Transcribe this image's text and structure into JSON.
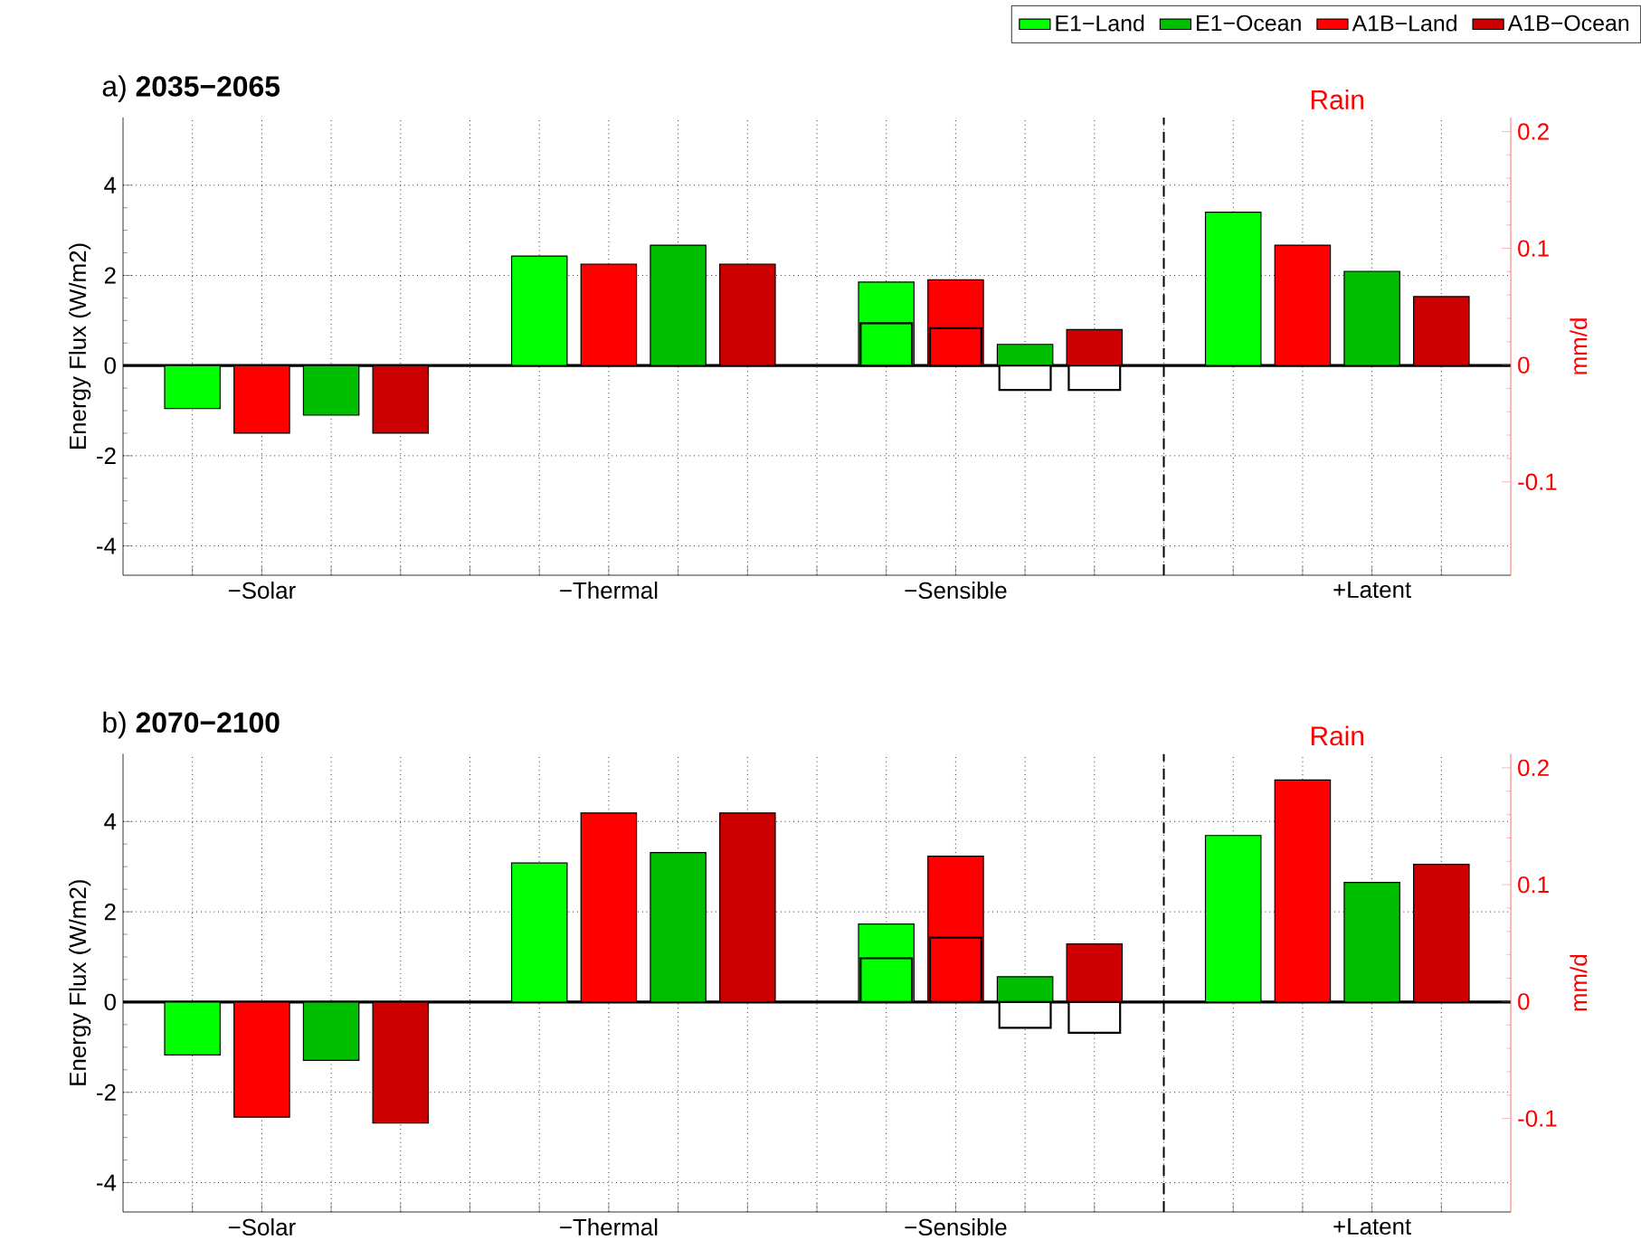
{
  "chart_data": [
    {
      "type": "bar",
      "title": "a) **2035−2065**",
      "ylabel": "Energy Flux (W/m2)",
      "y2label": "mm/d",
      "categories": [
        null,
        "−Solar",
        null,
        null,
        null,
        null,
        "−Thermal",
        null,
        null,
        null,
        null,
        "−Sensible",
        null,
        null,
        null,
        null,
        null,
        "+Latent",
        null
      ],
      "series": [
        {
          "name": "E1−Land",
          "color": "#00ff00",
          "values": [
            -0.95,
            null,
            null,
            null,
            null,
            2.43,
            null,
            null,
            null,
            null,
            1.85,
            null,
            null,
            null,
            null,
            3.4,
            null,
            null,
            null
          ]
        },
        {
          "name": "E1−Ocean",
          "color": "#00bf00",
          "values": [
            null,
            null,
            -1.1,
            null,
            null,
            null,
            null,
            2.67,
            null,
            null,
            null,
            null,
            0.47,
            null,
            null,
            null,
            null,
            2.09,
            null
          ]
        },
        {
          "name": "A1B−Land",
          "color": "#ff0000",
          "values": [
            null,
            -1.5,
            null,
            null,
            null,
            null,
            2.25,
            null,
            null,
            null,
            null,
            1.9,
            null,
            null,
            null,
            null,
            2.67,
            null,
            null
          ]
        },
        {
          "name": "A1B−Ocean",
          "color": "#cc0000",
          "values": [
            null,
            null,
            null,
            -1.5,
            null,
            null,
            null,
            null,
            2.25,
            null,
            null,
            null,
            null,
            0.8,
            null,
            null,
            null,
            null,
            1.53
          ]
        },
        {
          "colors": [
            null,
            null,
            null,
            null,
            null,
            null,
            null,
            null,
            null,
            null,
            "#00ff00",
            "#ff0000",
            "#ffffff",
            "#ffffff",
            null,
            null,
            null,
            null,
            null
          ],
          "values": [
            null,
            null,
            null,
            null,
            null,
            null,
            null,
            null,
            null,
            null,
            0.94,
            0.83,
            -0.54,
            -0.54,
            null,
            null,
            null,
            null,
            null
          ]
        }
      ],
      "ylim": [
        -4.65,
        5.5
      ],
      "yticks": [
        -4,
        -2,
        0,
        2,
        4
      ],
      "y2lim": [
        -0.18,
        0.212
      ],
      "y2ticks": [
        -0.1,
        0,
        0.1,
        0.2
      ],
      "grid": true,
      "legend": "top",
      "ref_lines": [
        {
          "axis": "y",
          "value": 0,
          "color": "#000000"
        }
      ],
      "annotations": [
        "Rain"
      ]
    },
    {
      "type": "bar",
      "title": "b) **2070−2100**",
      "ylabel": "Energy Flux (W/m2)",
      "y2label": "mm/d",
      "categories": [
        null,
        "−Solar",
        null,
        null,
        null,
        null,
        "−Thermal",
        null,
        null,
        null,
        null,
        "−Sensible",
        null,
        null,
        null,
        null,
        null,
        "+Latent",
        null
      ],
      "series": [
        {
          "color": "#00ff00",
          "values": [
            -1.17,
            null,
            null,
            null,
            null,
            3.08,
            null,
            null,
            null,
            null,
            1.73,
            null,
            null,
            null,
            null,
            3.69,
            null,
            null,
            null
          ]
        },
        {
          "color": "#00bf00",
          "values": [
            null,
            null,
            -1.29,
            null,
            null,
            null,
            null,
            3.31,
            null,
            null,
            null,
            null,
            0.56,
            null,
            null,
            null,
            null,
            2.65,
            null
          ]
        },
        {
          "color": "#ff0000",
          "values": [
            null,
            -2.55,
            null,
            null,
            null,
            null,
            4.19,
            null,
            null,
            null,
            null,
            3.23,
            null,
            null,
            null,
            null,
            4.92,
            null,
            null
          ]
        },
        {
          "color": "#cc0000",
          "values": [
            null,
            null,
            null,
            -2.68,
            null,
            null,
            null,
            null,
            4.19,
            null,
            null,
            null,
            null,
            1.29,
            null,
            null,
            null,
            null,
            3.05
          ]
        },
        {
          "colors": [
            null,
            null,
            null,
            null,
            null,
            null,
            null,
            null,
            null,
            null,
            "#00ff00",
            "#ff0000",
            "#ffffff",
            "#ffffff",
            null,
            null,
            null,
            null,
            null
          ],
          "values": [
            null,
            null,
            null,
            null,
            null,
            null,
            null,
            null,
            null,
            null,
            0.97,
            1.43,
            -0.57,
            -0.68,
            null,
            null,
            null,
            null,
            null
          ]
        }
      ],
      "ylim": [
        -4.65,
        5.5
      ],
      "yticks": [
        -4,
        -2,
        0,
        2,
        4
      ],
      "y2lim": [
        -0.18,
        0.212
      ],
      "y2ticks": [
        -0.1,
        0,
        0.1,
        0.2
      ],
      "grid": true,
      "ref_lines": [
        {
          "axis": "y",
          "value": 0,
          "color": "#000000"
        }
      ],
      "annotations": [
        "Rain"
      ]
    }
  ]
}
